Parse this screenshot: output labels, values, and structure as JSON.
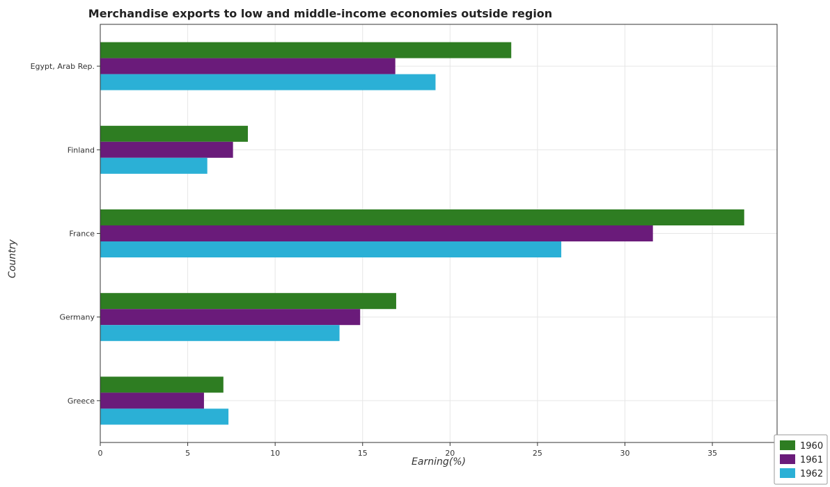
{
  "colors": {
    "1960": "#2e7d22",
    "1961": "#6a1b7a",
    "1962": "#2bb0d6"
  },
  "chart_data": {
    "type": "bar",
    "orientation": "horizontal",
    "title": "Merchandise exports to low and middle-income economies outside region",
    "xlabel": "Earning(%)",
    "ylabel": "Country",
    "xlim": [
      0,
      38.7
    ],
    "xticks": [
      "0",
      "5",
      "10",
      "15",
      "20",
      "25",
      "30",
      "35"
    ],
    "categories": [
      "Egypt, Arab Rep.",
      "Finland",
      "France",
      "Germany",
      "Greece"
    ],
    "series": [
      {
        "name": "1960",
        "values": [
          23.5,
          8.44,
          36.82,
          16.92,
          7.04
        ]
      },
      {
        "name": "1961",
        "values": [
          16.87,
          7.59,
          31.6,
          14.86,
          5.93
        ]
      },
      {
        "name": "1962",
        "values": [
          19.17,
          6.12,
          26.36,
          13.68,
          7.33
        ]
      }
    ],
    "legend_position": "bottom-right",
    "grid": true
  }
}
